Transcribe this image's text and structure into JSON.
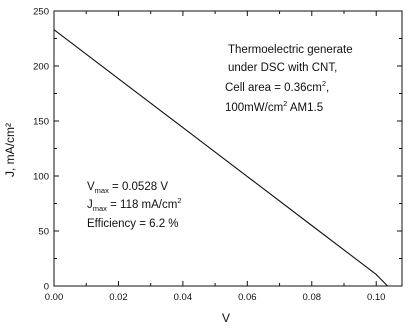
{
  "chart_data": {
    "type": "line",
    "title": "",
    "xlabel": "V",
    "ylabel": "J, mA/cm²",
    "xlim": [
      0.0,
      0.108
    ],
    "ylim": [
      0,
      250
    ],
    "xticks": [
      "0.00",
      "0.02",
      "0.04",
      "0.06",
      "0.08",
      "0.10"
    ],
    "yticks": [
      "0",
      "50",
      "100",
      "150",
      "200",
      "250"
    ],
    "grid": false,
    "series": [
      {
        "x": [
          0.0,
          0.02,
          0.04,
          0.06,
          0.08,
          0.1,
          0.1035
        ],
        "y": [
          233,
          188.5,
          144,
          99.5,
          55,
          10.5,
          0
        ],
        "color": "#111111"
      }
    ],
    "annotations": {
      "description": {
        "line1": "Thermoelectric generate",
        "line2": "under DSC with CNT,",
        "line3_text": "Cell area = 0.36cm",
        "line3_sup": "2",
        "line3_after": ",",
        "line4_text": "100mW/cm",
        "line4_sup": "2",
        "line4_after": " AM1.5"
      },
      "results": {
        "vmax_sym": "V",
        "vmax_sub": "max",
        "vmax_val": " = 0.0528 V",
        "jmax_sym": "J",
        "jmax_sub": "max",
        "jmax_val": " = 118 mA/cm",
        "jmax_sup": "2",
        "efficiency": "Efficiency = 6.2 %"
      }
    }
  }
}
